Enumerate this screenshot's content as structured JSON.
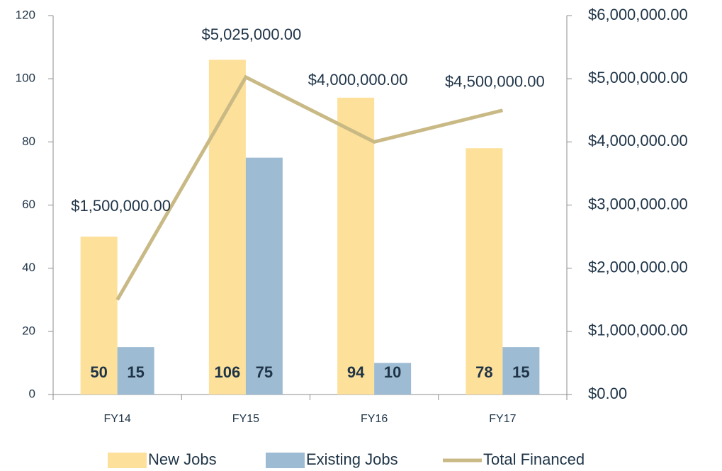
{
  "chart_data": {
    "type": "bar",
    "categories": [
      "FY14",
      "FY15",
      "FY16",
      "FY17"
    ],
    "series": [
      {
        "name": "New Jobs",
        "color": "#fde09a",
        "values": [
          50,
          106,
          94,
          78
        ]
      },
      {
        "name": "Existing Jobs",
        "color": "#9dbbd3",
        "values": [
          15,
          75,
          10,
          15
        ]
      },
      {
        "name": "Total Financed",
        "type": "line",
        "axis": "y2",
        "color": "#c9b985",
        "values": [
          1500000,
          5025000,
          4000000,
          4500000
        ],
        "value_labels": [
          "$1,500,000.00",
          "$5,025,000.00",
          "$4,000,000.00",
          "$4,500,000.00"
        ]
      }
    ],
    "ylim": [
      0,
      120
    ],
    "yticks": [
      0,
      20,
      40,
      60,
      80,
      100,
      120
    ],
    "y2lim": [
      0,
      6000000
    ],
    "y2ticks": [
      {
        "value": 0,
        "label": "$0.00"
      },
      {
        "value": 1000000,
        "label": "$1,000,000.00"
      },
      {
        "value": 2000000,
        "label": "$2,000,000.00"
      },
      {
        "value": 3000000,
        "label": "$3,000,000.00"
      },
      {
        "value": 4000000,
        "label": "$4,000,000.00"
      },
      {
        "value": 5000000,
        "label": "$5,000,000.00"
      },
      {
        "value": 6000000,
        "label": "$6,000,000.00"
      }
    ],
    "legend": "bottom"
  }
}
